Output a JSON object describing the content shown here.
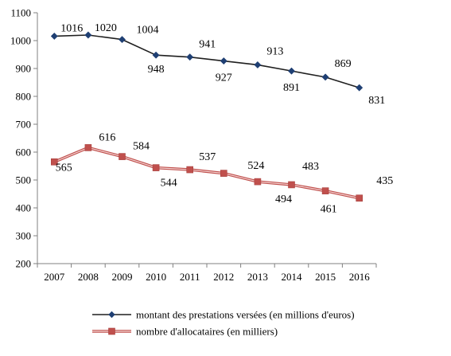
{
  "chart_data": {
    "type": "line",
    "categories": [
      "2007",
      "2008",
      "2009",
      "2010",
      "2011",
      "2012",
      "2013",
      "2014",
      "2015",
      "2016"
    ],
    "series": [
      {
        "name": "montant des prestations versées (en millions d'euros)",
        "values": [
          1016,
          1020,
          1004,
          948,
          941,
          927,
          913,
          891,
          869,
          831
        ],
        "color": "#1f1f1f",
        "marker_color": "#1f3f73",
        "marker": "diamond"
      },
      {
        "name": "nombre d'allocataires (en milliers)",
        "values": [
          565,
          616,
          584,
          544,
          537,
          524,
          494,
          483,
          461,
          435
        ],
        "color": "#c0504d",
        "marker_color": "#c0504d",
        "marker": "square"
      }
    ],
    "ylim": [
      200,
      1100
    ],
    "yticks": [
      200,
      300,
      400,
      500,
      600,
      700,
      800,
      900,
      1000,
      1100
    ],
    "grid": false,
    "legend_position": "bottom"
  }
}
